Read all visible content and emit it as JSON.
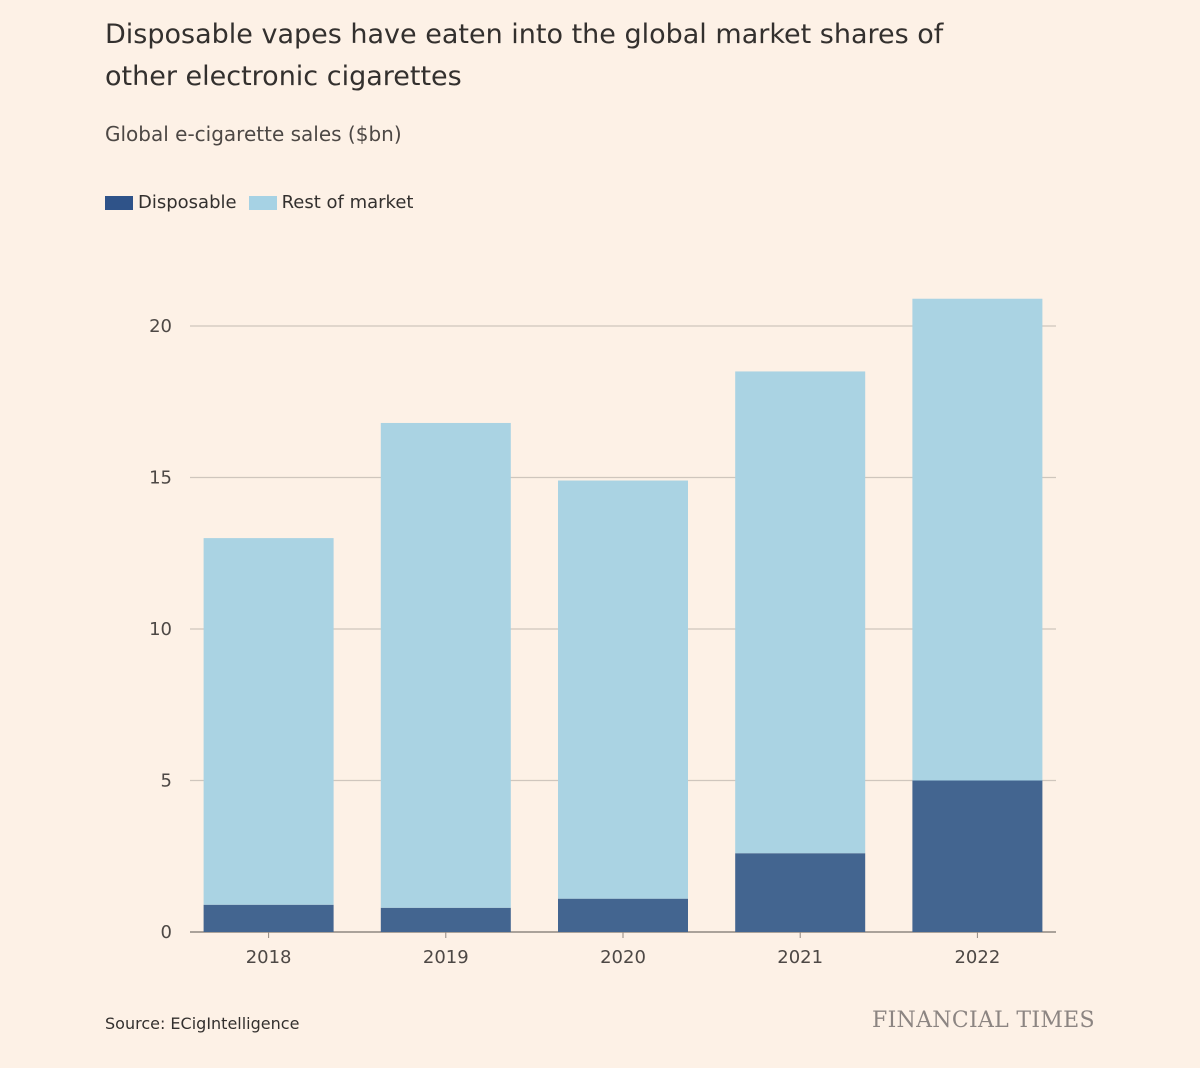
{
  "colors": {
    "background": "#fdf1e6",
    "disposable": "#436590",
    "rest": "#aad3e3",
    "grid": "#cfc6bd"
  },
  "chart_data": {
    "type": "bar",
    "stacked": true,
    "title": "Disposable vapes have eaten into the global market shares of other electronic cigarettes",
    "subtitle": "Global e-cigarette sales ($bn)",
    "categories": [
      "2018",
      "2019",
      "2020",
      "2021",
      "2022"
    ],
    "series": [
      {
        "name": "Disposable",
        "values": [
          0.9,
          0.8,
          1.1,
          2.6,
          5.0
        ]
      },
      {
        "name": "Rest of market",
        "values": [
          12.1,
          16.0,
          13.8,
          15.9,
          15.9
        ]
      }
    ],
    "ylim": [
      0,
      20
    ],
    "yticks": [
      "0",
      "5",
      "10",
      "15",
      "20"
    ],
    "grid": true,
    "legend": "top-left"
  },
  "footer": {
    "source": "Source: ECigIntelligence",
    "logo": "FINANCIAL TIMES"
  }
}
